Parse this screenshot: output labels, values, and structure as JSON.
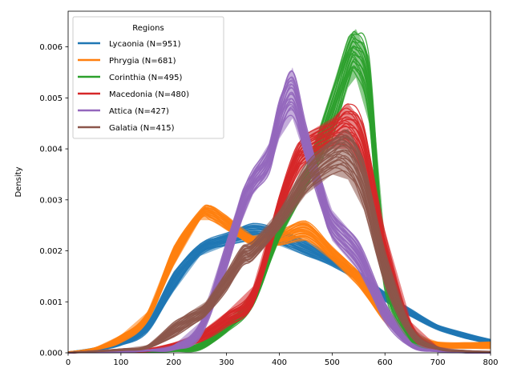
{
  "chart_data": {
    "type": "line",
    "title": "",
    "xlabel": "",
    "ylabel": "Density",
    "xlim": [
      0,
      800
    ],
    "ylim": [
      0,
      0.0067
    ],
    "xticks": [
      0,
      100,
      200,
      300,
      400,
      500,
      600,
      700,
      800
    ],
    "xtick_labels": [
      "0",
      "100",
      "200",
      "300",
      "400",
      "500",
      "600",
      "700",
      "800"
    ],
    "yticks": [
      0,
      0.001,
      0.002,
      0.003,
      0.004,
      0.005,
      0.006
    ],
    "ytick_labels": [
      "0.000",
      "0.001",
      "0.002",
      "0.003",
      "0.004",
      "0.005",
      "0.006"
    ],
    "grid": false,
    "legend": {
      "title": "Regions",
      "placement": "top-left"
    },
    "series": [
      {
        "name": "Lycaonia (N=951)",
        "color": "#1f77b4",
        "x": [
          0,
          50,
          100,
          150,
          200,
          250,
          300,
          350,
          400,
          450,
          500,
          550,
          600,
          650,
          700,
          750,
          800
        ],
        "lower": [
          0,
          4e-05,
          0.00014,
          0.0004,
          0.0012,
          0.0019,
          0.0021,
          0.0022,
          0.0021,
          0.0019,
          0.0017,
          0.0014,
          0.001,
          0.0007,
          0.00045,
          0.00028,
          0.00016
        ],
        "upper": [
          2e-05,
          0.0001,
          0.00025,
          0.0006,
          0.0016,
          0.00215,
          0.00235,
          0.00255,
          0.00245,
          0.0022,
          0.0019,
          0.0016,
          0.0012,
          0.00085,
          0.00055,
          0.0004,
          0.00027
        ]
      },
      {
        "name": "Phrygia (N=681)",
        "color": "#ff7f0e",
        "x": [
          0,
          50,
          100,
          150,
          200,
          250,
          270,
          300,
          350,
          400,
          450,
          500,
          550,
          600,
          650,
          700,
          750,
          800
        ],
        "lower": [
          0,
          5e-05,
          0.0002,
          0.0006,
          0.0017,
          0.0026,
          0.0026,
          0.0024,
          0.0021,
          0.0021,
          0.0022,
          0.0018,
          0.0013,
          0.0006,
          0.00022,
          0.0001,
          8e-05,
          8e-05
        ],
        "upper": [
          2e-05,
          0.0001,
          0.00035,
          0.0008,
          0.0021,
          0.0028,
          0.0029,
          0.0027,
          0.0023,
          0.0024,
          0.0026,
          0.0021,
          0.0016,
          0.0009,
          0.0004,
          0.00022,
          0.0002,
          0.00022
        ]
      },
      {
        "name": "Corinthia (N=495)",
        "color": "#2ca02c",
        "x": [
          0,
          100,
          150,
          200,
          250,
          300,
          350,
          400,
          450,
          500,
          530,
          545,
          570,
          600,
          650,
          700,
          750,
          800
        ],
        "lower": [
          0,
          1e-05,
          1e-05,
          2e-05,
          5e-05,
          0.0004,
          0.0009,
          0.0022,
          0.0032,
          0.0042,
          0.0052,
          0.0054,
          0.0045,
          0.0012,
          0.0002,
          3e-05,
          0,
          0
        ],
        "upper": [
          0,
          2e-05,
          3e-05,
          8e-05,
          0.0002,
          0.0006,
          0.0012,
          0.0026,
          0.0036,
          0.0052,
          0.0062,
          0.00635,
          0.0058,
          0.0022,
          0.0004,
          0.0001,
          2e-05,
          0
        ]
      },
      {
        "name": "Macedonia (N=480)",
        "color": "#d62728",
        "x": [
          0,
          100,
          150,
          200,
          250,
          300,
          350,
          400,
          430,
          450,
          500,
          530,
          560,
          600,
          650,
          700,
          750,
          800
        ],
        "lower": [
          0,
          1e-05,
          2e-05,
          8e-05,
          0.0002,
          0.0005,
          0.0009,
          0.0026,
          0.0034,
          0.0037,
          0.004,
          0.004,
          0.0034,
          0.0014,
          0.0003,
          5e-05,
          1e-05,
          0
        ],
        "upper": [
          0,
          3e-05,
          8e-05,
          0.0002,
          0.0004,
          0.0008,
          0.0013,
          0.0031,
          0.004,
          0.0043,
          0.0046,
          0.0049,
          0.0045,
          0.0024,
          0.0006,
          0.00012,
          3e-05,
          1e-05
        ]
      },
      {
        "name": "Attica (N=427)",
        "color": "#9467bd",
        "x": [
          0,
          100,
          150,
          200,
          250,
          300,
          330,
          350,
          380,
          400,
          425,
          450,
          480,
          500,
          550,
          600,
          650,
          700,
          750,
          800
        ],
        "lower": [
          0,
          1e-05,
          3e-05,
          5e-05,
          0.0003,
          0.0016,
          0.0026,
          0.0031,
          0.0035,
          0.0042,
          0.0046,
          0.0038,
          0.0028,
          0.0022,
          0.0016,
          0.0006,
          0.0001,
          2e-05,
          0,
          0
        ],
        "upper": [
          0,
          3e-05,
          6e-05,
          0.00015,
          0.0006,
          0.0022,
          0.0032,
          0.0036,
          0.0041,
          0.005,
          0.0056,
          0.0045,
          0.0034,
          0.0028,
          0.0022,
          0.001,
          0.0002,
          5e-05,
          1e-05,
          0
        ]
      },
      {
        "name": "Galatia (N=415)",
        "color": "#8c564b",
        "x": [
          0,
          100,
          150,
          200,
          230,
          260,
          300,
          330,
          350,
          400,
          450,
          500,
          530,
          560,
          600,
          650,
          700,
          750,
          800
        ],
        "lower": [
          0,
          4e-05,
          8e-05,
          0.0003,
          0.0005,
          0.0007,
          0.0012,
          0.0017,
          0.0018,
          0.0024,
          0.0031,
          0.0035,
          0.0034,
          0.0028,
          0.0013,
          0.0003,
          6e-05,
          2e-05,
          1e-05
        ],
        "upper": [
          1e-05,
          8e-05,
          0.00015,
          0.0006,
          0.0008,
          0.001,
          0.0016,
          0.0021,
          0.0022,
          0.0028,
          0.0037,
          0.0042,
          0.0044,
          0.0038,
          0.002,
          0.0005,
          0.00012,
          5e-05,
          3e-05
        ]
      }
    ]
  }
}
